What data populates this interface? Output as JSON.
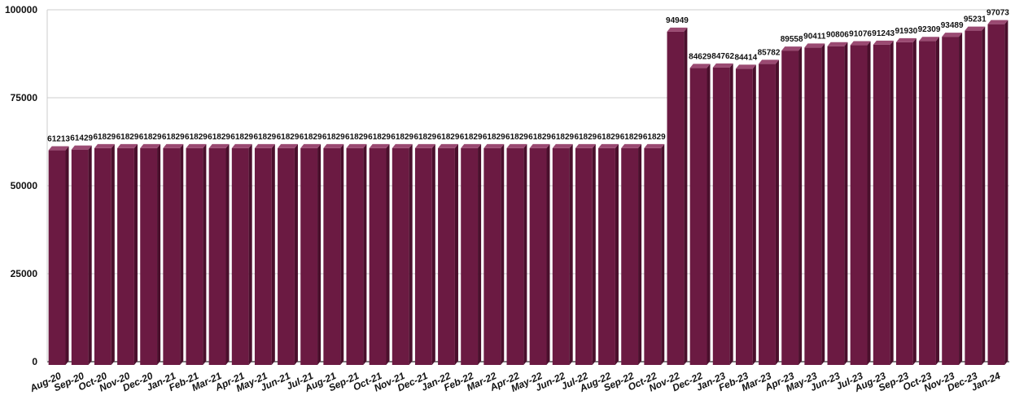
{
  "chart_data": {
    "type": "bar",
    "style": "3d",
    "title": "",
    "xlabel": "",
    "ylabel": "",
    "ylim": [
      0,
      100000
    ],
    "yticks": [
      0,
      25000,
      50000,
      75000,
      100000
    ],
    "grid": true,
    "legend": "none",
    "colors": {
      "bar_front": "#6b1a42",
      "bar_top": "#9a4a72",
      "bar_side": "#4a0f2c",
      "grid": "#cccccc",
      "axis": "#555555"
    },
    "categories": [
      "Aug-20",
      "Sep-20",
      "Oct-20",
      "Nov-20",
      "Dec-20",
      "Jan-21",
      "Feb-21",
      "Mar-21",
      "Apr-21",
      "May-21",
      "Jun-21",
      "Jul-21",
      "Aug-21",
      "Sep-21",
      "Oct-21",
      "Nov-21",
      "Dec-21",
      "Jan-22",
      "Feb-22",
      "Mar-22",
      "Apr-22",
      "May-22",
      "Jun-22",
      "Jul-22",
      "Aug-22",
      "Sep-22",
      "Oct-22",
      "Nov-22",
      "Dec-22",
      "Jan-23",
      "Feb-23",
      "Mar-23",
      "Apr-23",
      "May-23",
      "Jun-23",
      "Jul-23",
      "Aug-23",
      "Sep-23",
      "Oct-23",
      "Nov-23",
      "Dec-23",
      "Jan-24"
    ],
    "values": [
      61213,
      61429,
      61829,
      61829,
      61829,
      61829,
      61829,
      61829,
      61829,
      61829,
      61829,
      61829,
      61829,
      61829,
      61829,
      61829,
      61829,
      61829,
      61829,
      61829,
      61829,
      61829,
      61829,
      61829,
      61829,
      61829,
      61829,
      94949,
      84629,
      84762,
      84414,
      85782,
      89558,
      90411,
      90806,
      91076,
      91243,
      91930,
      92309,
      93489,
      95231,
      97073
    ]
  }
}
